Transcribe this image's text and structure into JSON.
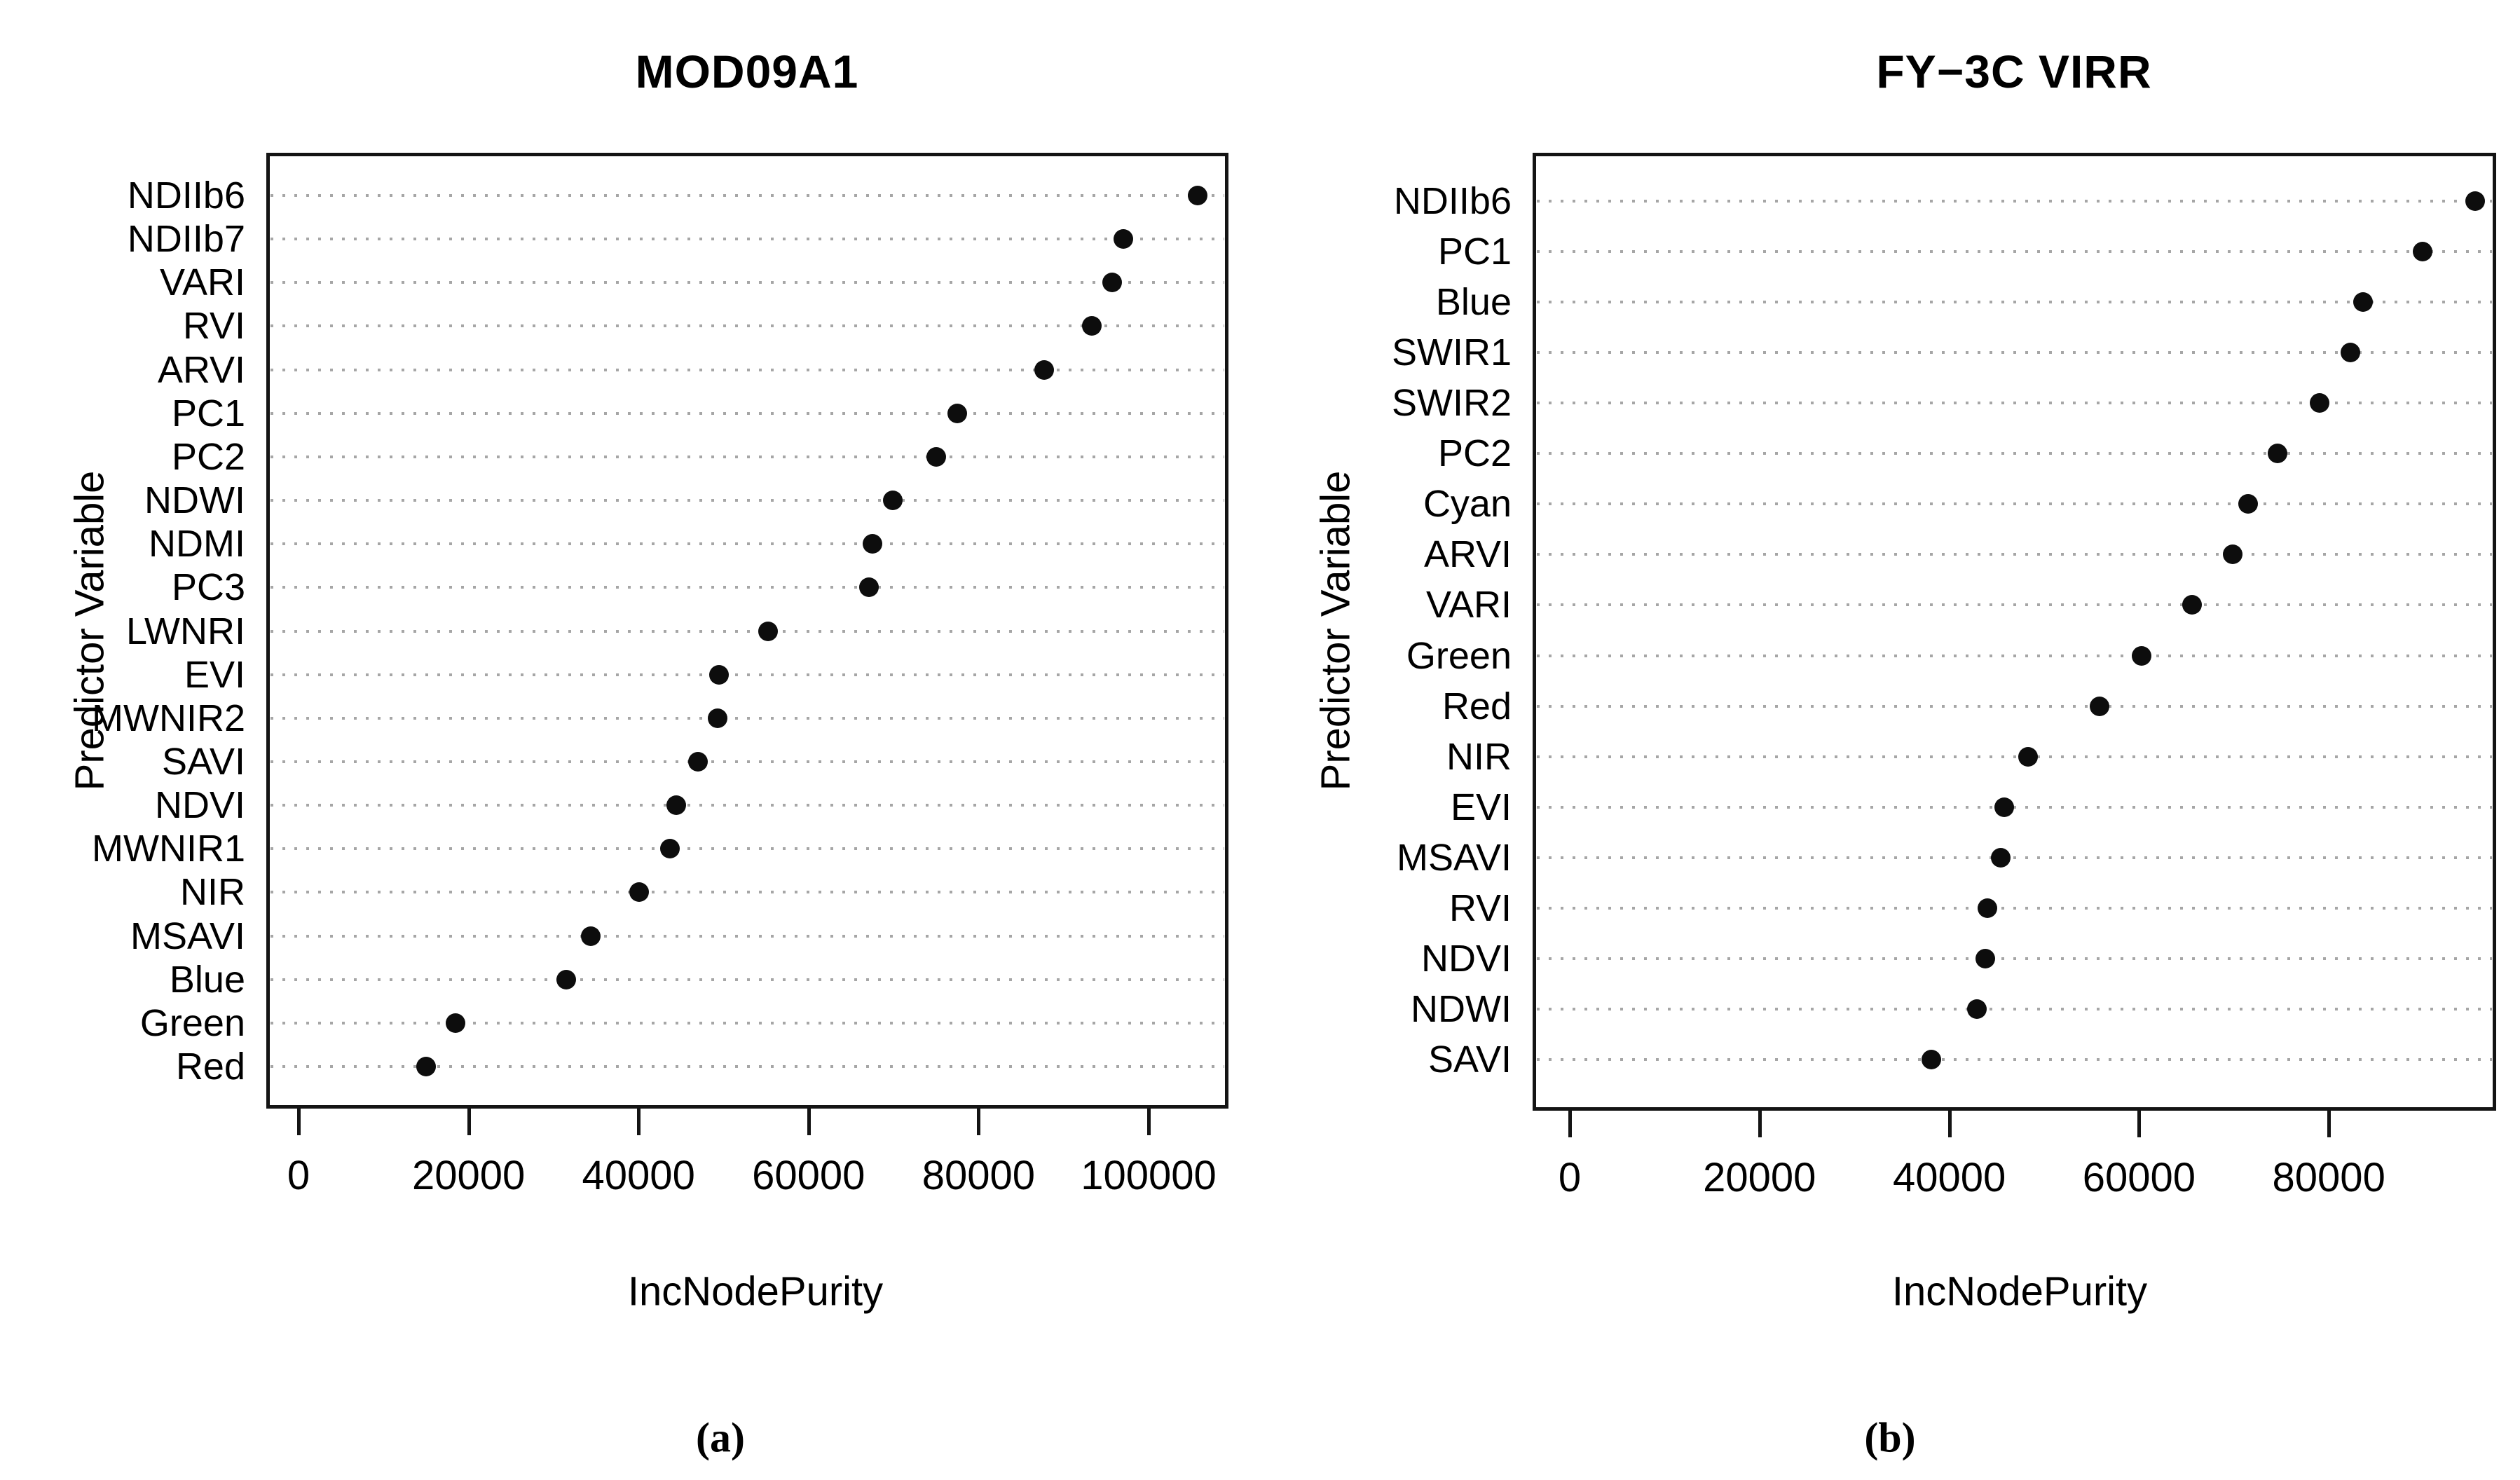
{
  "figure": {
    "background": "#ffffff",
    "text_color": "#000000",
    "grid_color": "#a6a6a6",
    "dot_color": "#0d0d0d"
  },
  "chart_data": [
    {
      "type": "scatter",
      "subtype": "dotchart",
      "title": "MOD09A1",
      "xlabel": "IncNodePurity",
      "ylabel": "Predictor Variable",
      "caption": "(a)",
      "grid": true,
      "legend": "none",
      "xlim": [
        0,
        110000
      ],
      "xticks": [
        0,
        20000,
        40000,
        60000,
        80000,
        100000
      ],
      "xtick_labels": [
        "0",
        "20000",
        "40000",
        "60000",
        "80000",
        "100000"
      ],
      "categories": [
        "NDIIb6",
        "NDIIb7",
        "VARI",
        "RVI",
        "ARVI",
        "PC1",
        "PC2",
        "NDWI",
        "NDMI",
        "PC3",
        "LWNRI",
        "EVI",
        "MWNIR2",
        "SAVI",
        "NDVI",
        "MWNIR1",
        "NIR",
        "MSAVI",
        "Blue",
        "Green",
        "Red"
      ],
      "values": [
        105800,
        97000,
        95700,
        93300,
        87700,
        77500,
        75000,
        69900,
        67500,
        67100,
        55200,
        49500,
        49300,
        47000,
        44400,
        43700,
        40100,
        34400,
        31500,
        18500,
        15000
      ]
    },
    {
      "type": "scatter",
      "subtype": "dotchart",
      "title": "FY−3C VIRR",
      "xlabel": "IncNodePurity",
      "ylabel": "Predictor Variable",
      "caption": "(b)",
      "grid": true,
      "legend": "none",
      "xlim": [
        0,
        100000
      ],
      "xticks": [
        0,
        20000,
        40000,
        60000,
        80000
      ],
      "xtick_labels": [
        "0",
        "20000",
        "40000",
        "60000",
        "80000"
      ],
      "categories": [
        "NDIIb6",
        "PC1",
        "Blue",
        "SWIR1",
        "SWIR2",
        "PC2",
        "Cyan",
        "ARVI",
        "VARI",
        "Green",
        "Red",
        "NIR",
        "EVI",
        "MSAVI",
        "RVI",
        "NDVI",
        "NDWI",
        "SAVI"
      ],
      "values": [
        95400,
        89900,
        83600,
        82300,
        79000,
        74600,
        71500,
        69900,
        65600,
        60300,
        55800,
        48300,
        45800,
        45400,
        44000,
        43800,
        42900,
        38100
      ]
    }
  ]
}
